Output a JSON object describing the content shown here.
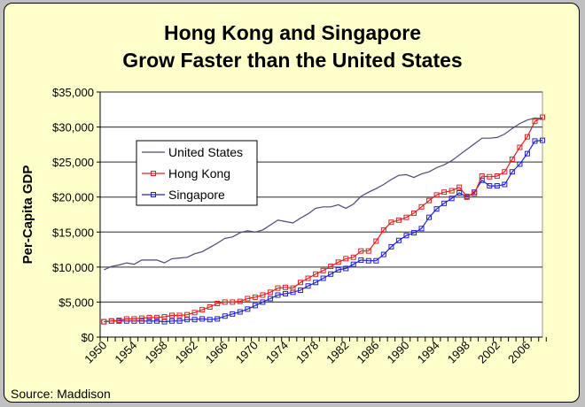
{
  "chart_data": {
    "type": "line",
    "title": [
      "Hong Kong and Singapore",
      "Grow Faster than the United States"
    ],
    "ylabel": "Per-Capita GDP",
    "xlabel": "",
    "source": "Source: Maddison",
    "x_start": 1950,
    "x_end": 2008,
    "xtick_labels": [
      "1950",
      "1954",
      "1958",
      "1962",
      "1966",
      "1970",
      "1974",
      "1978",
      "1982",
      "1986",
      "1990",
      "1994",
      "1998",
      "2002",
      "2006"
    ],
    "ylim": [
      0,
      35000
    ],
    "ytick_labels": [
      "$0",
      "$5,000",
      "$10,000",
      "$15,000",
      "$20,000",
      "$25,000",
      "$30,000",
      "$35,000"
    ],
    "grid": "horizontal",
    "legend_placement": "upper-left",
    "series": [
      {
        "name": "United States",
        "color": "#4a4a7a",
        "marker": "none",
        "values": [
          9600,
          10100,
          10300,
          10600,
          10400,
          11000,
          11000,
          11000,
          10600,
          11200,
          11300,
          11400,
          11900,
          12200,
          12800,
          13400,
          14100,
          14300,
          14900,
          15200,
          15000,
          15300,
          16000,
          16700,
          16500,
          16300,
          17000,
          17600,
          18400,
          18600,
          18600,
          18900,
          18400,
          19000,
          20100,
          20700,
          21200,
          21800,
          22500,
          23100,
          23200,
          22800,
          23300,
          23600,
          24200,
          24600,
          25200,
          26000,
          26800,
          27600,
          28400,
          28400,
          28500,
          29000,
          29800,
          30500,
          31000,
          31300,
          31200
        ]
      },
      {
        "name": "Hong Kong",
        "color": "#dd2222",
        "marker": "square",
        "values": [
          2200,
          2300,
          2400,
          2600,
          2600,
          2700,
          2800,
          2800,
          2900,
          3100,
          3100,
          3200,
          3500,
          3900,
          4300,
          4800,
          5000,
          5000,
          5100,
          5500,
          5700,
          6000,
          6400,
          7000,
          7100,
          7000,
          7800,
          8400,
          9000,
          9500,
          10100,
          10700,
          11200,
          11400,
          12300,
          12300,
          13700,
          15300,
          16400,
          16700,
          17100,
          17700,
          18600,
          19500,
          20300,
          20700,
          20900,
          21400,
          20100,
          20500,
          23000,
          22900,
          23000,
          23600,
          25400,
          27100,
          28600,
          30800,
          31400
        ]
      },
      {
        "name": "Singapore",
        "color": "#2222cc",
        "marker": "square",
        "values": [
          2200,
          2300,
          2300,
          2300,
          2300,
          2300,
          2300,
          2300,
          2200,
          2300,
          2300,
          2500,
          2500,
          2600,
          2500,
          2600,
          3000,
          3300,
          3600,
          4000,
          4500,
          5000,
          5500,
          6000,
          6200,
          6400,
          6700,
          7300,
          7800,
          8400,
          9000,
          9600,
          9800,
          10400,
          11000,
          10900,
          10900,
          11800,
          12900,
          13800,
          14500,
          14900,
          15500,
          17100,
          18300,
          19100,
          19800,
          20600,
          20000,
          20700,
          22400,
          21600,
          21600,
          21800,
          23600,
          24700,
          26200,
          28000,
          28100
        ]
      }
    ]
  }
}
